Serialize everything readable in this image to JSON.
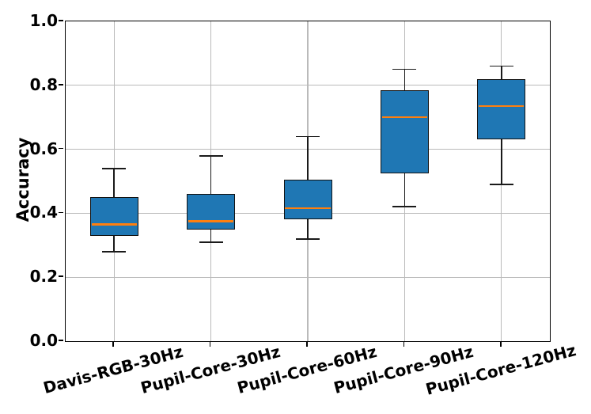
{
  "chart_data": {
    "type": "boxplot",
    "title": "",
    "xlabel": "",
    "ylabel": "Accuracy",
    "ylim": [
      0.0,
      1.0
    ],
    "yticks": [
      0.0,
      0.2,
      0.4,
      0.6,
      0.8,
      1.0
    ],
    "ytick_labels": [
      "0.0",
      "0.2",
      "0.4",
      "0.6",
      "0.8",
      "1.0"
    ],
    "grid": "both",
    "legend": "none",
    "x_tick_rotation_deg": 15,
    "categories": [
      "Davis-RGB-30Hz",
      "Pupil-Core-30Hz",
      "Pupil-Core-60Hz",
      "Pupil-Core-90Hz",
      "Pupil-Core-120Hz"
    ],
    "boxes": [
      {
        "label": "Davis-RGB-30Hz",
        "whisker_low": 0.28,
        "q1": 0.33,
        "median": 0.365,
        "q3": 0.45,
        "whisker_high": 0.54
      },
      {
        "label": "Pupil-Core-30Hz",
        "whisker_low": 0.31,
        "q1": 0.35,
        "median": 0.375,
        "q3": 0.46,
        "whisker_high": 0.58
      },
      {
        "label": "Pupil-Core-60Hz",
        "whisker_low": 0.32,
        "q1": 0.38,
        "median": 0.415,
        "q3": 0.505,
        "whisker_high": 0.64
      },
      {
        "label": "Pupil-Core-90Hz",
        "whisker_low": 0.42,
        "q1": 0.525,
        "median": 0.7,
        "q3": 0.785,
        "whisker_high": 0.85
      },
      {
        "label": "Pupil-Core-120Hz",
        "whisker_low": 0.49,
        "q1": 0.63,
        "median": 0.735,
        "q3": 0.82,
        "whisker_high": 0.86
      }
    ],
    "colors": {
      "box_fill": "#1f77b4",
      "box_edge": "#121212",
      "median": "#ff7f0e",
      "whisker": "#1a1a1a",
      "grid": "#bababa",
      "spine": "#000000",
      "background": "#ffffff"
    }
  }
}
